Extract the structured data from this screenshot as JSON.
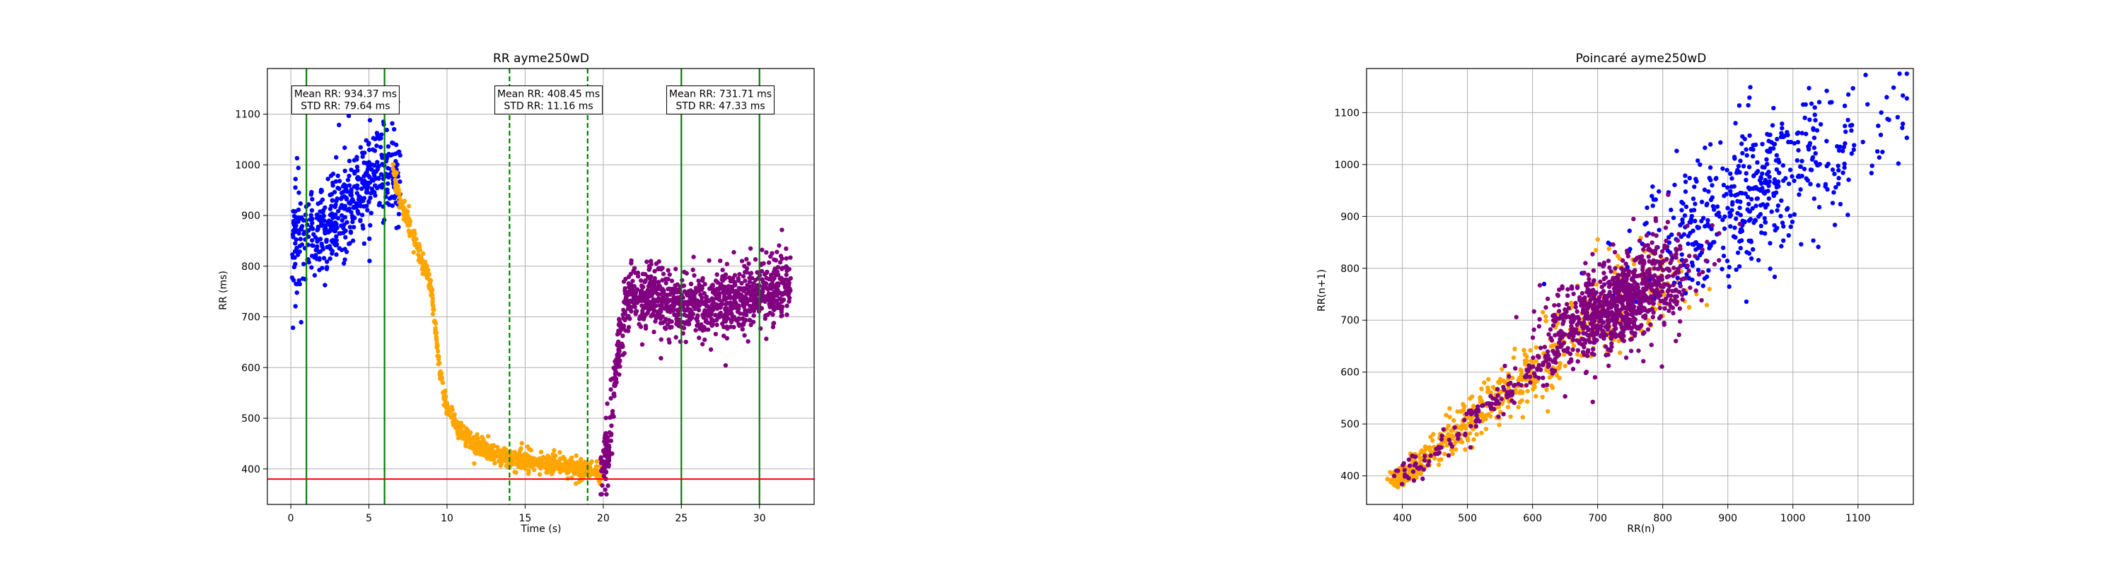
{
  "colors": {
    "baseline": "#0000ff",
    "transition": "#ffa500",
    "recovery": "#800080",
    "solid_marker": "#008000",
    "dashed_marker": "#008000",
    "threshold": "#ff0000",
    "grid": "#b0b0b0"
  },
  "chart_data": [
    {
      "type": "scatter",
      "title": "RR ayme250wD",
      "xlabel": "Time (s)",
      "ylabel": "RR (ms)",
      "xlim": [
        -1.5,
        33.5
      ],
      "ylim": [
        330,
        1190
      ],
      "xticks": [
        0,
        5,
        10,
        15,
        20,
        25,
        30
      ],
      "yticks": [
        400,
        500,
        600,
        700,
        800,
        900,
        1000,
        1100
      ],
      "grid": true,
      "vlines_solid": [
        1,
        6,
        25,
        30
      ],
      "vlines_dashed": [
        14,
        19
      ],
      "hline_threshold": 380,
      "annotations": [
        {
          "x": 3.5,
          "y": 1128,
          "lines": [
            "Mean RR: 934.37 ms",
            "STD RR: 79.64 ms"
          ]
        },
        {
          "x": 16.5,
          "y": 1128,
          "lines": [
            "Mean RR: 408.45 ms",
            "STD RR: 11.16 ms"
          ]
        },
        {
          "x": 27.5,
          "y": 1128,
          "lines": [
            "Mean RR: 731.71 ms",
            "STD RR: 47.33 ms"
          ]
        }
      ],
      "series": [
        {
          "color": "#0000ff",
          "x_range": [
            0,
            7
          ],
          "y_trend": [
            [
              0,
              850
            ],
            [
              2,
              880
            ],
            [
              4,
              930
            ],
            [
              5.5,
              1000
            ],
            [
              6.5,
              980
            ],
            [
              7,
              960
            ]
          ],
          "y_spread": 65,
          "count": 520,
          "seed": 11
        },
        {
          "color": "#ffa500",
          "x_range": [
            6.5,
            20
          ],
          "y_trend": [
            [
              6.5,
              1000
            ],
            [
              7,
              930
            ],
            [
              8,
              850
            ],
            [
              9,
              760
            ],
            [
              9.5,
              600
            ],
            [
              10,
              520
            ],
            [
              11,
              470
            ],
            [
              12,
              445
            ],
            [
              14,
              420
            ],
            [
              16,
              412
            ],
            [
              18,
              402
            ],
            [
              20,
              390
            ]
          ],
          "y_spread": 12,
          "count": 900,
          "seed": 23
        },
        {
          "color": "#800080",
          "x_range": [
            19.8,
            32
          ],
          "y_trend": [
            [
              19.8,
              390
            ],
            [
              20.3,
              430
            ],
            [
              20.8,
              600
            ],
            [
              21.5,
              740
            ],
            [
              23,
              740
            ],
            [
              26,
              720
            ],
            [
              29,
              740
            ],
            [
              32,
              760
            ]
          ],
          "y_spread": 42,
          "count": 1100,
          "seed": 37
        }
      ]
    },
    {
      "type": "scatter",
      "title": "Poincaré ayme250wD",
      "xlabel": "RR(n)",
      "ylabel": "RR(n+1)",
      "xlim": [
        345,
        1185
      ],
      "ylim": [
        345,
        1185
      ],
      "xticks": [
        400,
        500,
        600,
        700,
        800,
        900,
        1000,
        1100
      ],
      "yticks": [
        400,
        500,
        600,
        700,
        800,
        900,
        1000,
        1100
      ],
      "grid": true,
      "series": [
        {
          "color": "#0000ff",
          "center": [
            950,
            950
          ],
          "spread_along": 120,
          "spread_across": 55,
          "count": 500,
          "seed": 51
        },
        {
          "color": "#ffa500",
          "line_from": 385,
          "line_to": 820,
          "spread_across": 18,
          "count": 600,
          "seed": 63
        },
        {
          "color": "#800080",
          "center": [
            730,
            730
          ],
          "spread_along": 70,
          "spread_across": 35,
          "count": 900,
          "seed": 77,
          "tail_from": 390,
          "tail_to": 650,
          "tail_count": 160
        }
      ]
    }
  ]
}
